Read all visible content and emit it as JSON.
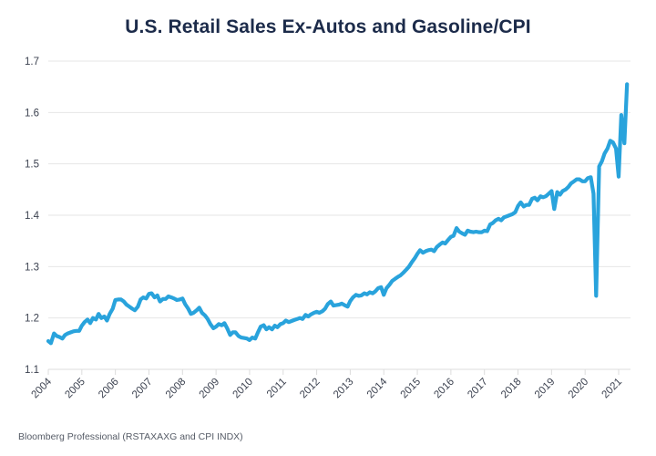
{
  "chart_data": {
    "type": "line",
    "title": "U.S. Retail Sales Ex-Autos and Gasoline/CPI",
    "xlabel": "",
    "ylabel": "",
    "source": "Bloomberg Professional (RSTAXAXG and CPI INDX)",
    "xlim": [
      2004,
      2021.35
    ],
    "ylim": [
      1.1,
      1.7
    ],
    "yticks": [
      1.1,
      1.2,
      1.3,
      1.4,
      1.5,
      1.6,
      1.7
    ],
    "ytick_labels": [
      "1.1",
      "1.2",
      "1.3",
      "1.4",
      "1.5",
      "1.6",
      "1.7"
    ],
    "xticks": [
      2004,
      2005,
      2006,
      2007,
      2008,
      2009,
      2010,
      2011,
      2012,
      2013,
      2014,
      2015,
      2016,
      2017,
      2018,
      2019,
      2020,
      2021
    ],
    "xtick_labels": [
      "2004",
      "2005",
      "2006",
      "2007",
      "2008",
      "2009",
      "2010",
      "2011",
      "2012",
      "2013",
      "2014",
      "2015",
      "2016",
      "2017",
      "2018",
      "2019",
      "2020",
      "2021"
    ],
    "grid": true,
    "legend": "none",
    "series": [
      {
        "name": "Retail Sales Ex-Autos and Gasoline / CPI",
        "color": "#29a3dc",
        "x": [
          2004.0,
          2004.08,
          2004.17,
          2004.25,
          2004.33,
          2004.42,
          2004.5,
          2004.58,
          2004.67,
          2004.75,
          2004.83,
          2004.92,
          2005.0,
          2005.08,
          2005.17,
          2005.25,
          2005.33,
          2005.42,
          2005.5,
          2005.58,
          2005.67,
          2005.75,
          2005.83,
          2005.92,
          2006.0,
          2006.08,
          2006.17,
          2006.25,
          2006.33,
          2006.42,
          2006.5,
          2006.58,
          2006.67,
          2006.75,
          2006.83,
          2006.92,
          2007.0,
          2007.08,
          2007.17,
          2007.25,
          2007.33,
          2007.42,
          2007.5,
          2007.58,
          2007.67,
          2007.75,
          2007.83,
          2007.92,
          2008.0,
          2008.08,
          2008.17,
          2008.25,
          2008.33,
          2008.42,
          2008.5,
          2008.58,
          2008.67,
          2008.75,
          2008.83,
          2008.92,
          2009.0,
          2009.08,
          2009.17,
          2009.25,
          2009.33,
          2009.42,
          2009.5,
          2009.58,
          2009.67,
          2009.75,
          2009.83,
          2009.92,
          2010.0,
          2010.08,
          2010.17,
          2010.25,
          2010.33,
          2010.42,
          2010.5,
          2010.58,
          2010.67,
          2010.75,
          2010.83,
          2010.92,
          2011.0,
          2011.08,
          2011.17,
          2011.25,
          2011.33,
          2011.42,
          2011.5,
          2011.58,
          2011.67,
          2011.75,
          2011.83,
          2011.92,
          2012.0,
          2012.08,
          2012.17,
          2012.25,
          2012.33,
          2012.42,
          2012.5,
          2012.58,
          2012.67,
          2012.75,
          2012.83,
          2012.92,
          2013.0,
          2013.08,
          2013.17,
          2013.25,
          2013.33,
          2013.42,
          2013.5,
          2013.58,
          2013.67,
          2013.75,
          2013.83,
          2013.92,
          2014.0,
          2014.08,
          2014.17,
          2014.25,
          2014.33,
          2014.42,
          2014.5,
          2014.58,
          2014.67,
          2014.75,
          2014.83,
          2014.92,
          2015.0,
          2015.08,
          2015.17,
          2015.25,
          2015.33,
          2015.42,
          2015.5,
          2015.58,
          2015.67,
          2015.75,
          2015.83,
          2015.92,
          2016.0,
          2016.08,
          2016.17,
          2016.25,
          2016.33,
          2016.42,
          2016.5,
          2016.58,
          2016.67,
          2016.75,
          2016.83,
          2016.92,
          2017.0,
          2017.08,
          2017.17,
          2017.25,
          2017.33,
          2017.42,
          2017.5,
          2017.58,
          2017.67,
          2017.75,
          2017.83,
          2017.92,
          2018.0,
          2018.08,
          2018.17,
          2018.25,
          2018.33,
          2018.42,
          2018.5,
          2018.58,
          2018.67,
          2018.75,
          2018.83,
          2018.92,
          2019.0,
          2019.08,
          2019.17,
          2019.25,
          2019.33,
          2019.42,
          2019.5,
          2019.58,
          2019.67,
          2019.75,
          2019.83,
          2019.92,
          2020.0,
          2020.08,
          2020.17,
          2020.25,
          2020.33,
          2020.42,
          2020.5,
          2020.58,
          2020.67,
          2020.75,
          2020.83,
          2020.92,
          2021.0,
          2021.08,
          2021.17,
          2021.25
        ],
        "y": [
          1.155,
          1.151,
          1.17,
          1.165,
          1.163,
          1.16,
          1.167,
          1.17,
          1.172,
          1.174,
          1.175,
          1.175,
          1.185,
          1.192,
          1.197,
          1.19,
          1.2,
          1.197,
          1.208,
          1.2,
          1.203,
          1.195,
          1.208,
          1.218,
          1.235,
          1.236,
          1.236,
          1.232,
          1.226,
          1.222,
          1.218,
          1.215,
          1.222,
          1.236,
          1.24,
          1.238,
          1.247,
          1.248,
          1.24,
          1.244,
          1.232,
          1.237,
          1.237,
          1.242,
          1.24,
          1.238,
          1.235,
          1.236,
          1.238,
          1.227,
          1.218,
          1.208,
          1.21,
          1.215,
          1.22,
          1.21,
          1.205,
          1.198,
          1.188,
          1.18,
          1.183,
          1.188,
          1.186,
          1.19,
          1.18,
          1.167,
          1.172,
          1.172,
          1.165,
          1.162,
          1.161,
          1.16,
          1.157,
          1.162,
          1.16,
          1.172,
          1.183,
          1.186,
          1.178,
          1.182,
          1.178,
          1.185,
          1.182,
          1.188,
          1.19,
          1.195,
          1.192,
          1.194,
          1.196,
          1.198,
          1.2,
          1.198,
          1.206,
          1.203,
          1.207,
          1.21,
          1.212,
          1.21,
          1.213,
          1.218,
          1.227,
          1.232,
          1.224,
          1.225,
          1.226,
          1.228,
          1.225,
          1.222,
          1.233,
          1.24,
          1.245,
          1.243,
          1.244,
          1.248,
          1.246,
          1.25,
          1.248,
          1.252,
          1.258,
          1.26,
          1.245,
          1.258,
          1.265,
          1.272,
          1.276,
          1.28,
          1.283,
          1.288,
          1.294,
          1.3,
          1.308,
          1.316,
          1.325,
          1.332,
          1.327,
          1.33,
          1.332,
          1.333,
          1.33,
          1.338,
          1.343,
          1.347,
          1.345,
          1.352,
          1.358,
          1.36,
          1.375,
          1.368,
          1.365,
          1.362,
          1.37,
          1.368,
          1.367,
          1.368,
          1.367,
          1.367,
          1.37,
          1.369,
          1.382,
          1.385,
          1.39,
          1.393,
          1.39,
          1.396,
          1.398,
          1.4,
          1.402,
          1.406,
          1.418,
          1.425,
          1.417,
          1.42,
          1.42,
          1.432,
          1.434,
          1.429,
          1.437,
          1.435,
          1.437,
          1.442,
          1.447,
          1.412,
          1.445,
          1.44,
          1.447,
          1.45,
          1.455,
          1.462,
          1.466,
          1.47,
          1.47,
          1.466,
          1.466,
          1.472,
          1.474,
          1.442,
          1.243,
          1.495,
          1.505,
          1.52,
          1.53,
          1.545,
          1.542,
          1.53,
          1.475,
          1.595,
          1.54,
          1.655
        ]
      }
    ]
  }
}
